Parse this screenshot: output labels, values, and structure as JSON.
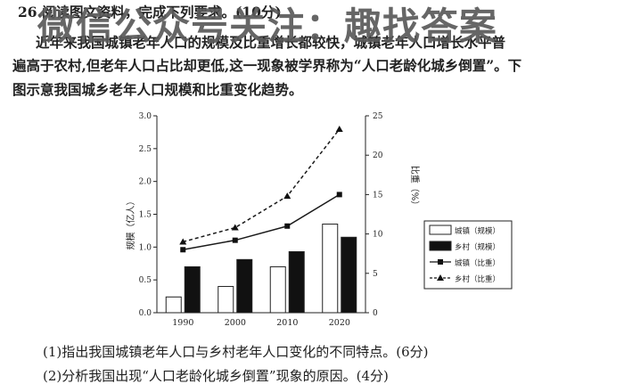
{
  "watermark": "微信公众号关注：趣找答案",
  "question": {
    "header": "26.阅读图文资料，完成下列要求。(10分)",
    "intro_line1": "近年来我国城镇老年人口的规模及比重增长都较快，城镇老年人口增长水平普",
    "intro_line2": "遍高于农村,但老年人口占比却更低,这一现象被学界称为“人口老龄化城乡倒置”。下",
    "intro_line3": "图示意我国城乡老年人口规模和比重变化趋势。",
    "q1": "(1)指出我国城镇老年人口与乡村老年人口变化的不同特点。(6分)",
    "q2": "(2)分析我国出现“人口老龄化城乡倒置”现象的原因。(4分)"
  },
  "chart_data": {
    "type": "bar",
    "categories": [
      "1990",
      "2000",
      "2010",
      "2020"
    ],
    "ylabel_left": "规模（亿人）",
    "ylabel_right": "比重（%）",
    "ylim_left": [
      0,
      3.0
    ],
    "yticks_left": [
      "0.0",
      "0.5",
      "1.0",
      "1.5",
      "2.0",
      "2.5",
      "3.0"
    ],
    "ylim_right": [
      0,
      25
    ],
    "yticks_right": [
      "0",
      "5",
      "10",
      "15",
      "20",
      "25"
    ],
    "bar_series": [
      {
        "name": "城镇（规模）",
        "axis": "left",
        "fill": "#ffffff",
        "values": [
          0.24,
          0.4,
          0.7,
          1.35
        ]
      },
      {
        "name": "乡村（规模）",
        "axis": "left",
        "fill": "#111111",
        "values": [
          0.7,
          0.81,
          0.93,
          1.15
        ]
      }
    ],
    "line_series": [
      {
        "name": "城镇（比重）",
        "axis": "right",
        "style": "solid",
        "marker": "square",
        "values": [
          8.0,
          9.2,
          11.0,
          15.0
        ]
      },
      {
        "name": "乡村（比重）",
        "axis": "right",
        "style": "dashed",
        "marker": "triangle",
        "values": [
          9.0,
          10.8,
          14.8,
          23.3
        ]
      }
    ],
    "legend_position": "right"
  }
}
